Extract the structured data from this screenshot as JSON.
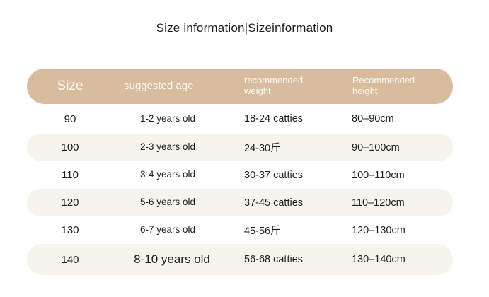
{
  "page": {
    "title": "Size information|Sizeinformation"
  },
  "colors": {
    "header_bg": "#d8bc9d",
    "header_text": "#fdfaf3",
    "row_alt_bg": "#f7f4ec",
    "row_bg": "#ffffff",
    "text": "#1f1f1f"
  },
  "table": {
    "columns": [
      "Size",
      "suggested age",
      "recommended weight",
      "Recommended height"
    ],
    "rows": [
      {
        "size": "90",
        "age": "1-2 years old",
        "weight": "18-24 catties",
        "height": "80–90cm"
      },
      {
        "size": "100",
        "age": "2-3 years old",
        "weight": "24-30斤",
        "height": "90–100cm"
      },
      {
        "size": "110",
        "age": "3-4 years old",
        "weight": "30-37 catties",
        "height": "100–110cm"
      },
      {
        "size": "120",
        "age": "5-6 years old",
        "weight": "37-45 catties",
        "height": "110–120cm"
      },
      {
        "size": "130",
        "age": "6-7 years old",
        "weight": "45-56斤",
        "height": "120–130cm"
      },
      {
        "size": "140",
        "age": "8-10 years old",
        "weight": "56-68 catties",
        "height": "130–140cm"
      }
    ]
  }
}
